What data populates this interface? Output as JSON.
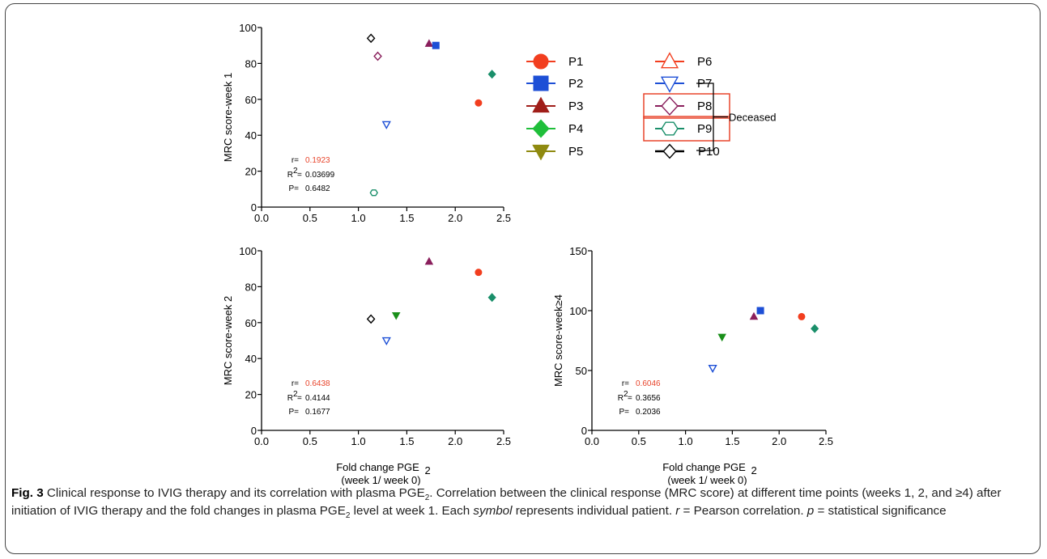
{
  "patients": [
    {
      "id": "P1",
      "color": "#f23e1f",
      "marker": "circle",
      "filled": true
    },
    {
      "id": "P2",
      "color": "#1d4fd6",
      "marker": "square",
      "filled": true
    },
    {
      "id": "P3",
      "color": "#a01e19",
      "marker": "triangle-up",
      "filled": true
    },
    {
      "id": "P4",
      "color": "#1fbf3a",
      "marker": "diamond",
      "filled": true
    },
    {
      "id": "P5",
      "color": "#8f8a10",
      "marker": "triangle-down",
      "filled": true
    },
    {
      "id": "P6",
      "color": "#f23e1f",
      "marker": "triangle-up",
      "filled": false
    },
    {
      "id": "P7",
      "color": "#1d4fd6",
      "marker": "triangle-down",
      "filled": false
    },
    {
      "id": "P8",
      "color": "#8a1f5c",
      "marker": "diamond",
      "filled": false
    },
    {
      "id": "P9",
      "color": "#1a8f6a",
      "marker": "hexagon",
      "filled": false
    },
    {
      "id": "P10",
      "color": "#000000",
      "marker": "diamond",
      "filled": false
    }
  ],
  "legend": {
    "boxed": [
      "P8",
      "P9"
    ],
    "bracket_label": "Deceased",
    "box_color": "#e8452c"
  },
  "chart_data": [
    {
      "type": "scatter",
      "ylabel": "MRC score-week 1",
      "xlabel": "",
      "xlabel2": "",
      "xlim": [
        0,
        2.5
      ],
      "ylim": [
        0,
        100
      ],
      "xticks": [
        "0.0",
        "0.5",
        "1.0",
        "1.5",
        "2.0",
        "2.5"
      ],
      "yticks": [
        "0",
        "20",
        "40",
        "60",
        "80",
        "100"
      ],
      "points": [
        {
          "patient": "P10",
          "x": 1.13,
          "y": 94,
          "color": "#000000",
          "marker": "diamond",
          "filled": false
        },
        {
          "patient": "P8",
          "x": 1.2,
          "y": 84,
          "color": "#8a1f5c",
          "marker": "diamond",
          "filled": false
        },
        {
          "patient": "P3",
          "x": 1.73,
          "y": 91,
          "color": "#8a1f5c",
          "marker": "triangle-up",
          "filled": true
        },
        {
          "patient": "P2",
          "x": 1.8,
          "y": 90,
          "color": "#1d4fd6",
          "marker": "square",
          "filled": true
        },
        {
          "patient": "P4",
          "x": 2.38,
          "y": 74,
          "color": "#1a8f6a",
          "marker": "diamond",
          "filled": true
        },
        {
          "patient": "P1",
          "x": 2.24,
          "y": 58,
          "color": "#f23e1f",
          "marker": "circle",
          "filled": true
        },
        {
          "patient": "P7",
          "x": 1.29,
          "y": 46,
          "color": "#1d4fd6",
          "marker": "triangle-down",
          "filled": false
        },
        {
          "patient": "P9",
          "x": 1.16,
          "y": 8,
          "color": "#1a8f6a",
          "marker": "hexagon",
          "filled": false
        }
      ],
      "stats": {
        "r": "0.1923",
        "r2": "0.03699",
        "p": "0.6482"
      }
    },
    {
      "type": "scatter",
      "ylabel": "MRC score-week 2",
      "xlabel": "Fold change PGE",
      "xlabel2": "(week 1/ week 0)",
      "xlim": [
        0,
        2.5
      ],
      "ylim": [
        0,
        100
      ],
      "xticks": [
        "0.0",
        "0.5",
        "1.0",
        "1.5",
        "2.0",
        "2.5"
      ],
      "yticks": [
        "0",
        "20",
        "40",
        "60",
        "80",
        "100"
      ],
      "points": [
        {
          "patient": "P3",
          "x": 1.73,
          "y": 94,
          "color": "#8a1f5c",
          "marker": "triangle-up",
          "filled": true
        },
        {
          "patient": "P1",
          "x": 2.24,
          "y": 88,
          "color": "#f23e1f",
          "marker": "circle",
          "filled": true
        },
        {
          "patient": "P4",
          "x": 2.38,
          "y": 74,
          "color": "#1a8f6a",
          "marker": "diamond",
          "filled": true
        },
        {
          "patient": "P5",
          "x": 1.39,
          "y": 64,
          "color": "#1a8f1a",
          "marker": "triangle-down",
          "filled": true
        },
        {
          "patient": "P10",
          "x": 1.13,
          "y": 62,
          "color": "#000000",
          "marker": "diamond",
          "filled": false
        },
        {
          "patient": "P7",
          "x": 1.29,
          "y": 50,
          "color": "#1d4fd6",
          "marker": "triangle-down",
          "filled": false
        }
      ],
      "stats": {
        "r": "0.6438",
        "r2": "0.4144",
        "p": "0.1677"
      }
    },
    {
      "type": "scatter",
      "ylabel": "MRC score-week≥4",
      "xlabel": "Fold change PGE",
      "xlabel2": "(week 1/ week 0)",
      "xlim": [
        0,
        2.5
      ],
      "ylim": [
        0,
        150
      ],
      "xticks": [
        "0.0",
        "0.5",
        "1.0",
        "1.5",
        "2.0",
        "2.5"
      ],
      "yticks": [
        "0",
        "50",
        "100",
        "150"
      ],
      "points": [
        {
          "patient": "P2",
          "x": 1.8,
          "y": 100,
          "color": "#1d4fd6",
          "marker": "square",
          "filled": true
        },
        {
          "patient": "P1",
          "x": 2.24,
          "y": 95,
          "color": "#f23e1f",
          "marker": "circle",
          "filled": true
        },
        {
          "patient": "P3",
          "x": 1.73,
          "y": 95,
          "color": "#8a1f5c",
          "marker": "triangle-up",
          "filled": true
        },
        {
          "patient": "P4",
          "x": 2.38,
          "y": 85,
          "color": "#1a8f6a",
          "marker": "diamond",
          "filled": true
        },
        {
          "patient": "P5",
          "x": 1.39,
          "y": 78,
          "color": "#1a8f1a",
          "marker": "triangle-down",
          "filled": true
        },
        {
          "patient": "P7",
          "x": 1.29,
          "y": 52,
          "color": "#1d4fd6",
          "marker": "triangle-down",
          "filled": false
        }
      ],
      "stats": {
        "r": "0.6046",
        "r2": "0.3656",
        "p": "0.2036"
      }
    }
  ],
  "stat_labels": {
    "r": "r=",
    "r2_base": "R",
    "r2_sup": "2",
    "r2_eq": "=",
    "p": "P=",
    "r_color": "#e8452c"
  },
  "caption": {
    "label": "Fig. 3",
    "s1": " Clinical response to IVIG therapy and its correlation with plasma PGE",
    "s2": ". Correlation between the clinical response (MRC score) at different time points (weeks 1, 2, and ≥4) after initiation of IVIG therapy and the fold changes in plasma PGE",
    "s3": " level at week 1. Each ",
    "s4": "symbol",
    "s5": " represents individual patient. ",
    "s6": "r",
    "s7": " = Pearson correlation. ",
    "s8": "p",
    "s9": " = statistical significance",
    "sub": "2"
  }
}
